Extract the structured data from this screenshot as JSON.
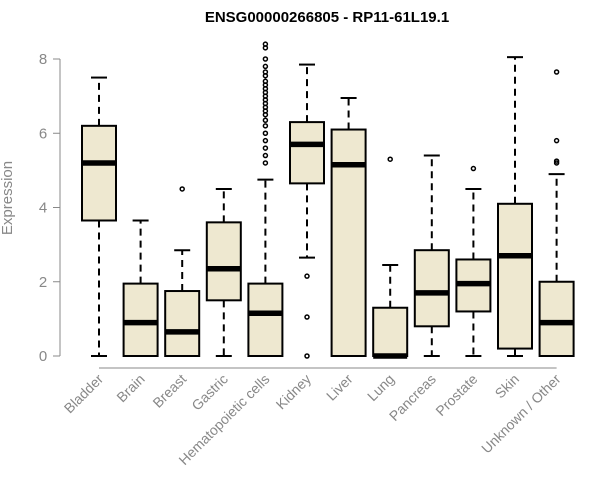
{
  "chart_data": {
    "type": "boxplot",
    "title": "ENSG00000266805 - RP11-61L19.1",
    "xlabel": "",
    "ylabel": "Expression",
    "ylim": [
      0,
      8.4
    ],
    "yticks": [
      0,
      2,
      4,
      6,
      8
    ],
    "box_color": "#EEE8D0",
    "categories": [
      "Bladder",
      "Brain",
      "Breast",
      "Gastric",
      "Hematopoietic cells",
      "Kidney",
      "Liver",
      "Lung",
      "Pancreas",
      "Prostate",
      "Skin",
      "Unknown / Other"
    ],
    "boxes": [
      {
        "min": 0,
        "q1": 3.65,
        "median": 5.2,
        "q3": 6.2,
        "max": 7.5,
        "outliers": []
      },
      {
        "min": 0,
        "q1": 0,
        "median": 0.9,
        "q3": 1.95,
        "max": 3.65,
        "outliers": []
      },
      {
        "min": 0,
        "q1": 0,
        "median": 0.65,
        "q3": 1.75,
        "max": 2.85,
        "outliers": [
          4.5
        ]
      },
      {
        "min": 0,
        "q1": 1.5,
        "median": 2.35,
        "q3": 3.6,
        "max": 4.5,
        "outliers": []
      },
      {
        "min": 0,
        "q1": 0,
        "median": 1.15,
        "q3": 1.95,
        "max": 4.75,
        "outliers": [
          5.2,
          5.4,
          5.6,
          5.8,
          6.0,
          6.2,
          6.35,
          6.5,
          6.6,
          6.7,
          6.8,
          6.9,
          7.0,
          7.1,
          7.2,
          7.3,
          7.4,
          7.55,
          7.65,
          7.8,
          8.0,
          8.3,
          8.4
        ]
      },
      {
        "min": 2.65,
        "q1": 4.65,
        "median": 5.7,
        "q3": 6.3,
        "max": 7.85,
        "outliers": [
          0,
          1.05,
          2.15
        ]
      },
      {
        "min": 0,
        "q1": 0,
        "median": 5.15,
        "q3": 6.1,
        "max": 6.95,
        "outliers": []
      },
      {
        "min": 0,
        "q1": 0,
        "median": 0,
        "q3": 1.3,
        "max": 2.45,
        "outliers": [
          5.3
        ]
      },
      {
        "min": 0,
        "q1": 0.8,
        "median": 1.7,
        "q3": 2.85,
        "max": 5.4,
        "outliers": []
      },
      {
        "min": 0,
        "q1": 1.2,
        "median": 1.95,
        "q3": 2.6,
        "max": 4.5,
        "outliers": [
          5.05
        ]
      },
      {
        "min": 0,
        "q1": 0.2,
        "median": 2.7,
        "q3": 4.1,
        "max": 8.05,
        "outliers": []
      },
      {
        "min": 0,
        "q1": 0,
        "median": 0.9,
        "q3": 2.0,
        "max": 4.9,
        "outliers": [
          5.2,
          5.25,
          5.8,
          7.65
        ]
      }
    ]
  }
}
